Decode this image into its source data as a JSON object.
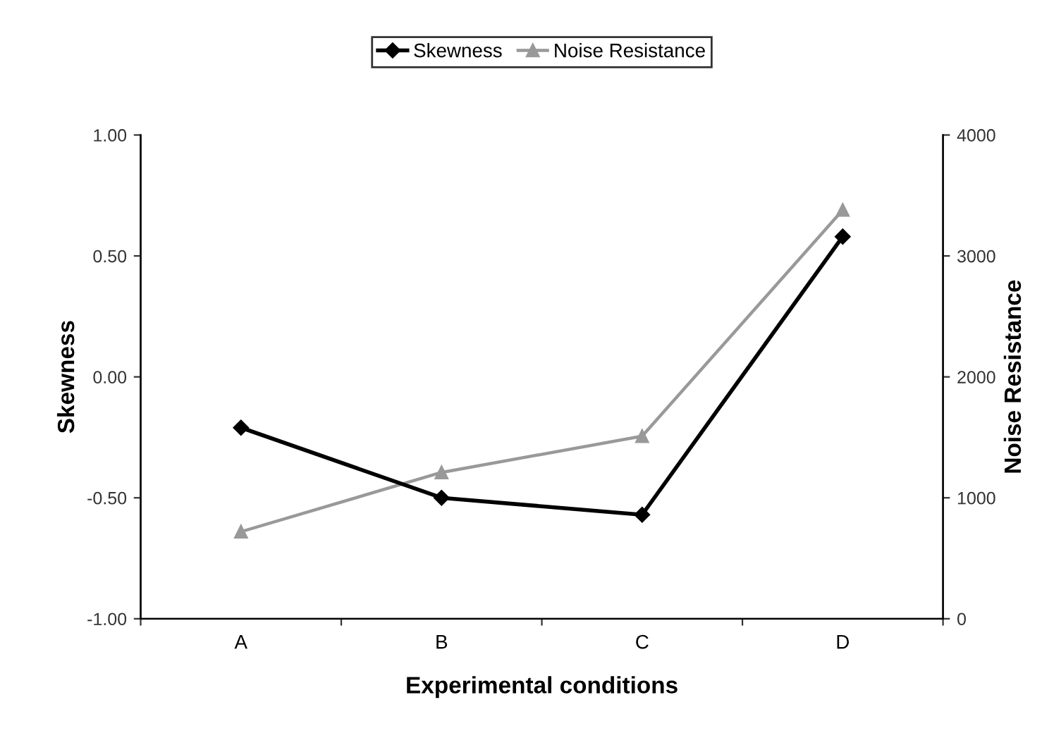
{
  "chart_data": {
    "type": "line",
    "xlabel": "Experimental conditions",
    "ylabel": "Skewness",
    "y2label": "Noise Resistance",
    "categories": [
      "A",
      "B",
      "C",
      "D"
    ],
    "series": [
      {
        "name": "Skewness",
        "color": "#000000",
        "marker": "diamond",
        "values": [
          -0.21,
          -0.5,
          -0.57,
          0.58
        ]
      },
      {
        "name": "Noise Resistance",
        "color": "#999999",
        "marker": "triangle",
        "axis": "y2",
        "values": [
          720,
          1210,
          1510,
          3380
        ]
      }
    ],
    "ylim": [
      -1,
      1
    ],
    "yticks": [
      {
        "value": -1,
        "label": "-1.00"
      },
      {
        "value": -0.5,
        "label": "-0.50"
      },
      {
        "value": 0,
        "label": "0.00"
      },
      {
        "value": 0.5,
        "label": "0.50"
      },
      {
        "value": 1,
        "label": "1.00"
      }
    ],
    "y2lim": [
      0,
      4000
    ],
    "y2ticks": [
      0,
      1000,
      2000,
      3000,
      4000
    ],
    "grid": false,
    "legend": "top"
  }
}
